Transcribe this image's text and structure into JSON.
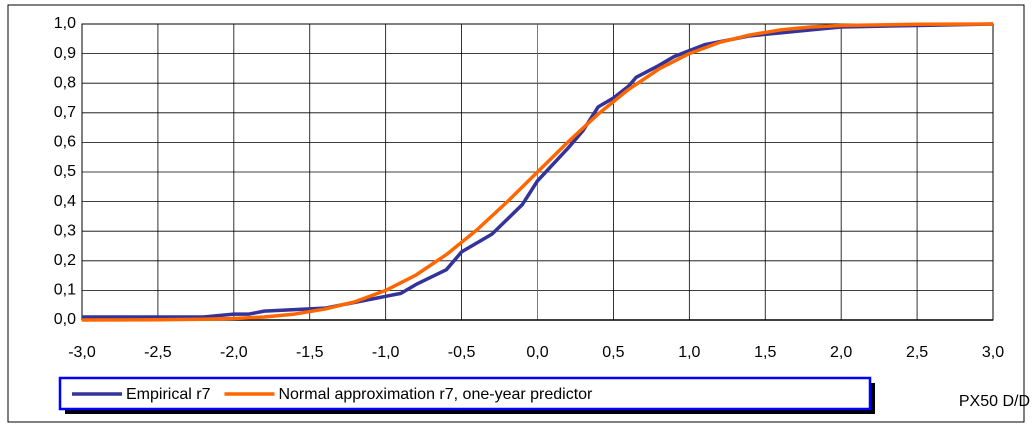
{
  "chart_data": {
    "type": "line",
    "xlabel": "PX50 D/D",
    "xlim": [
      -3,
      3
    ],
    "xticks": [
      {
        "value": -3,
        "label": "-3,0"
      },
      {
        "value": -2.5,
        "label": "-2,5"
      },
      {
        "value": -2,
        "label": "-2,0"
      },
      {
        "value": -1.5,
        "label": "-1,5"
      },
      {
        "value": -1,
        "label": "-1,0"
      },
      {
        "value": -0.5,
        "label": "-0,5"
      },
      {
        "value": 0,
        "label": "0,0"
      },
      {
        "value": 0.5,
        "label": "0,5"
      },
      {
        "value": 1,
        "label": "1,0"
      },
      {
        "value": 1.5,
        "label": "1,5"
      },
      {
        "value": 2,
        "label": "2,0"
      },
      {
        "value": 2.5,
        "label": "2,5"
      },
      {
        "value": 3,
        "label": "3,0"
      }
    ],
    "ylim": [
      0,
      1
    ],
    "yticks": [
      {
        "value": 0,
        "label": "0,0"
      },
      {
        "value": 0.1,
        "label": "0,1"
      },
      {
        "value": 0.2,
        "label": "0,2"
      },
      {
        "value": 0.3,
        "label": "0,3"
      },
      {
        "value": 0.4,
        "label": "0,4"
      },
      {
        "value": 0.5,
        "label": "0,5"
      },
      {
        "value": 0.6,
        "label": "0,6"
      },
      {
        "value": 0.7,
        "label": "0,7"
      },
      {
        "value": 0.8,
        "label": "0,8"
      },
      {
        "value": 0.9,
        "label": "0,9"
      },
      {
        "value": 1,
        "label": "1,0"
      }
    ],
    "grid": true,
    "legend": "bottom",
    "series": [
      {
        "name": "Empirical r7",
        "color": "#333399",
        "x": [
          -3,
          -2.2,
          -2,
          -1.9,
          -1.8,
          -1.6,
          -1.4,
          -1.2,
          -1,
          -0.9,
          -0.8,
          -0.6,
          -0.5,
          -0.3,
          -0.1,
          0,
          0.2,
          0.3,
          0.4,
          0.5,
          0.6,
          0.65,
          0.8,
          0.9,
          1,
          1.1,
          1.2,
          1.4,
          1.6,
          1.8,
          2,
          2.5,
          3
        ],
        "values": [
          0.01,
          0.01,
          0.02,
          0.02,
          0.03,
          0.035,
          0.04,
          0.06,
          0.08,
          0.09,
          0.12,
          0.17,
          0.23,
          0.29,
          0.39,
          0.47,
          0.58,
          0.64,
          0.72,
          0.75,
          0.79,
          0.82,
          0.86,
          0.89,
          0.91,
          0.93,
          0.94,
          0.96,
          0.97,
          0.98,
          0.99,
          0.995,
          1
        ]
      },
      {
        "name": "Normal approximation r7, one-year predictor",
        "color": "#ff6600",
        "x": [
          -3,
          -2.5,
          -2.2,
          -2,
          -1.8,
          -1.6,
          -1.4,
          -1.2,
          -1,
          -0.8,
          -0.6,
          -0.4,
          -0.2,
          0,
          0.2,
          0.4,
          0.6,
          0.8,
          1,
          1.2,
          1.4,
          1.6,
          1.8,
          2,
          2.5,
          3
        ],
        "values": [
          0.0001,
          0.0007,
          0.0024,
          0.005,
          0.01,
          0.02,
          0.037,
          0.062,
          0.1,
          0.152,
          0.221,
          0.304,
          0.399,
          0.5,
          0.601,
          0.696,
          0.779,
          0.848,
          0.9,
          0.938,
          0.963,
          0.98,
          0.99,
          0.995,
          0.999,
          1
        ]
      }
    ]
  }
}
